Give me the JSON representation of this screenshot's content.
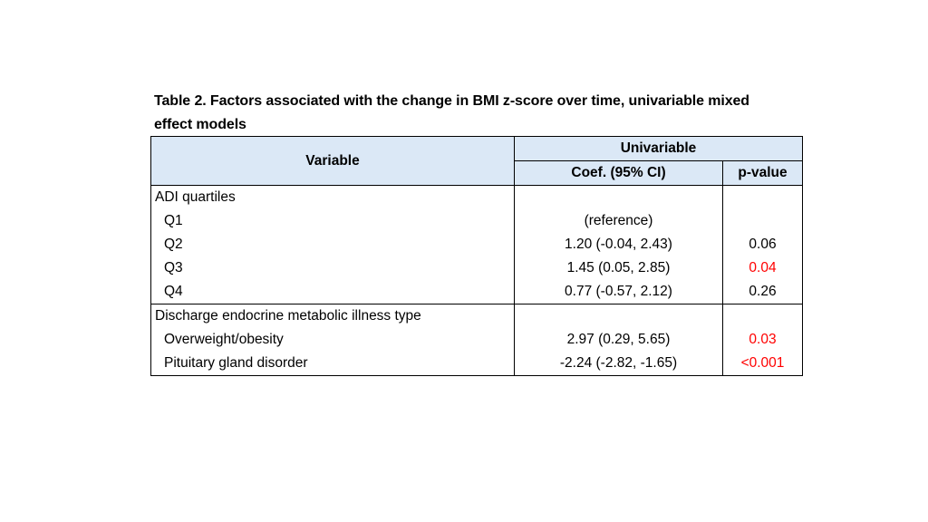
{
  "caption": {
    "line1": "Table 2. Factors associated with the change in BMI z-score over time, univariable mixed",
    "line2": "effect models"
  },
  "header": {
    "variable": "Variable",
    "group": "Univariable",
    "coef": "Coef. (95% CI)",
    "pvalue": "p-value"
  },
  "groups": [
    {
      "title": "ADI quartiles",
      "rows": [
        {
          "label": "Q1",
          "coef": "(reference)",
          "p": "",
          "significant": false
        },
        {
          "label": "Q2",
          "coef": "1.20 (-0.04, 2.43)",
          "p": "0.06",
          "significant": false
        },
        {
          "label": "Q3",
          "coef": "1.45 (0.05, 2.85)",
          "p": "0.04",
          "significant": true
        },
        {
          "label": "Q4",
          "coef": "0.77 (-0.57, 2.12)",
          "p": "0.26",
          "significant": false
        }
      ]
    },
    {
      "title": "Discharge endocrine metabolic illness type",
      "rows": [
        {
          "label": "Overweight/obesity",
          "coef": "2.97 (0.29, 5.65)",
          "p": "0.03",
          "significant": true
        },
        {
          "label": "Pituitary gland disorder",
          "coef": "-2.24 (-2.82, -1.65)",
          "p": "<0.001",
          "significant": true
        }
      ]
    }
  ],
  "colors": {
    "header_fill": "#dbe8f6",
    "significant": "#ff0000"
  }
}
